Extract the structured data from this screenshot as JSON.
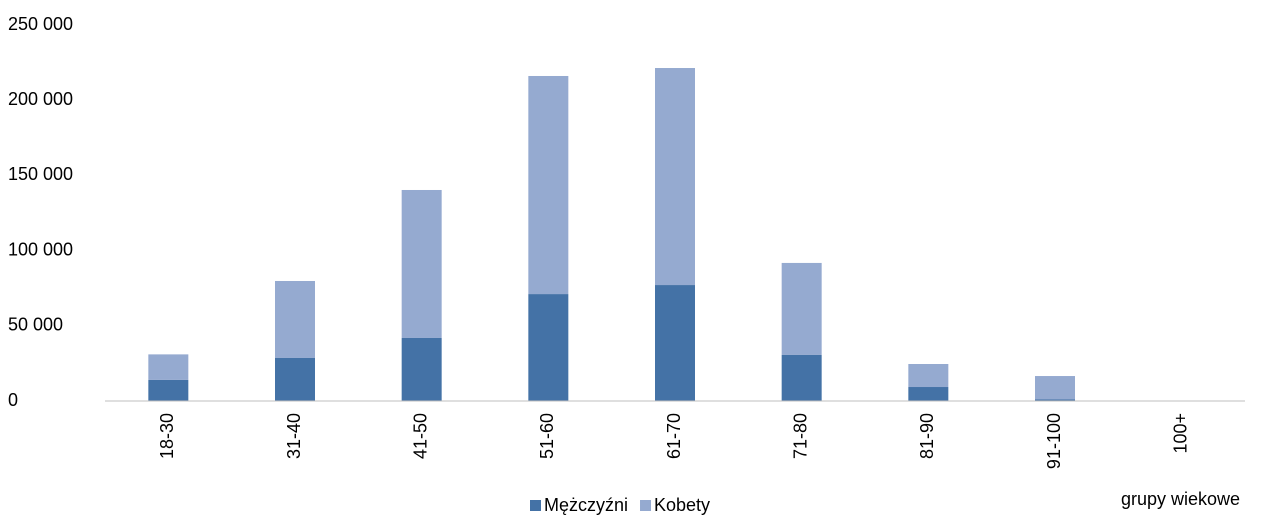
{
  "chart_data": {
    "type": "stacked_bar",
    "x_label": "grupy wiekowe",
    "categories": [
      "18-30",
      "31-40",
      "41-50",
      "51-60",
      "61-70",
      "71-80",
      "81-90",
      "91-100",
      "100+"
    ],
    "series": [
      {
        "name": "Mężczyźni",
        "color": "#4472a6",
        "values": [
          14000,
          28600,
          41900,
          71100,
          77100,
          30600,
          9300,
          1000,
          0
        ]
      },
      {
        "name": "Kobety",
        "color": "#95aad0",
        "values": [
          17000,
          51200,
          98400,
          145000,
          144300,
          61200,
          15300,
          15600,
          0
        ]
      }
    ],
    "ylim": [
      0,
      250000
    ],
    "yticks": [
      0,
      {
        "value": 50000,
        "label": "50 000"
      },
      {
        "value": 100000,
        "label": "100 000"
      },
      {
        "value": 150000,
        "label": "150 000"
      },
      {
        "value": 200000,
        "label": "200 000"
      },
      {
        "value": 250000,
        "label": "250 000"
      }
    ],
    "grid": false,
    "legend": "bottom"
  }
}
